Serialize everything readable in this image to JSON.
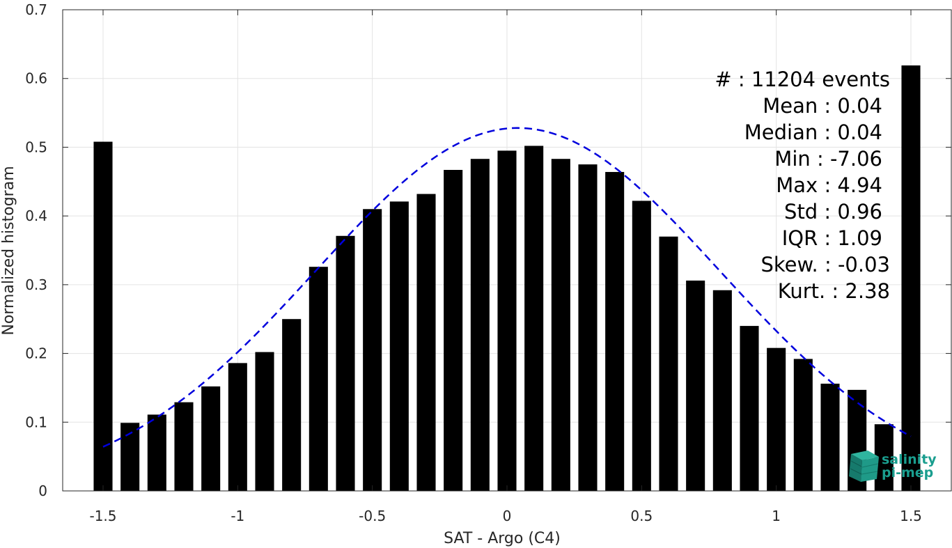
{
  "chart_data": {
    "type": "bar",
    "xlabel": "SAT - Argo (C4)",
    "ylabel": "Normalized histogram",
    "xlim": [
      -1.65,
      1.65
    ],
    "ylim": [
      0,
      0.7
    ],
    "xticks": [
      -1.5,
      -1,
      -0.5,
      0,
      0.5,
      1,
      1.5
    ],
    "xtick_labels": [
      "-1.5",
      "-1",
      "-0.5",
      "0",
      "0.5",
      "1",
      "1.5"
    ],
    "yticks": [
      0,
      0.1,
      0.2,
      0.3,
      0.4,
      0.5,
      0.6,
      0.7
    ],
    "ytick_labels": [
      "0",
      "0.1",
      "0.2",
      "0.3",
      "0.4",
      "0.5",
      "0.6",
      "0.7"
    ],
    "grid": true,
    "bar_width": 0.07,
    "bar_color": "#000000",
    "bars": [
      {
        "x": -1.5,
        "y": 0.508
      },
      {
        "x": -1.4,
        "y": 0.099
      },
      {
        "x": -1.3,
        "y": 0.111
      },
      {
        "x": -1.2,
        "y": 0.129
      },
      {
        "x": -1.1,
        "y": 0.152
      },
      {
        "x": -1.0,
        "y": 0.186
      },
      {
        "x": -0.9,
        "y": 0.202
      },
      {
        "x": -0.8,
        "y": 0.25
      },
      {
        "x": -0.7,
        "y": 0.326
      },
      {
        "x": -0.6,
        "y": 0.371
      },
      {
        "x": -0.5,
        "y": 0.41
      },
      {
        "x": -0.4,
        "y": 0.421
      },
      {
        "x": -0.3,
        "y": 0.432
      },
      {
        "x": -0.2,
        "y": 0.467
      },
      {
        "x": -0.1,
        "y": 0.483
      },
      {
        "x": 0.0,
        "y": 0.495
      },
      {
        "x": 0.1,
        "y": 0.502
      },
      {
        "x": 0.2,
        "y": 0.483
      },
      {
        "x": 0.3,
        "y": 0.475
      },
      {
        "x": 0.4,
        "y": 0.464
      },
      {
        "x": 0.5,
        "y": 0.422
      },
      {
        "x": 0.6,
        "y": 0.37
      },
      {
        "x": 0.7,
        "y": 0.306
      },
      {
        "x": 0.8,
        "y": 0.292
      },
      {
        "x": 0.9,
        "y": 0.24
      },
      {
        "x": 1.0,
        "y": 0.208
      },
      {
        "x": 1.1,
        "y": 0.192
      },
      {
        "x": 1.2,
        "y": 0.156
      },
      {
        "x": 1.3,
        "y": 0.147
      },
      {
        "x": 1.4,
        "y": 0.097
      },
      {
        "x": 1.5,
        "y": 0.619
      }
    ],
    "fit_curve": {
      "style": "dashed",
      "color": "#0000dd",
      "x_range": [
        -1.5,
        1.5
      ],
      "mean": 0.04,
      "std": 0.75,
      "peak": 0.528
    },
    "stats": [
      "#  : 11204 events",
      "Mean : 0.04",
      "Median : 0.04",
      "Min : -7.06",
      "Max : 4.94",
      "Std : 0.96",
      "IQR : 1.09",
      "Skew. : -0.03",
      "Kurt. : 2.38"
    ],
    "logo": {
      "line1": "salinity",
      "line2": "pi-mep",
      "color": "#1a9e8f"
    }
  }
}
